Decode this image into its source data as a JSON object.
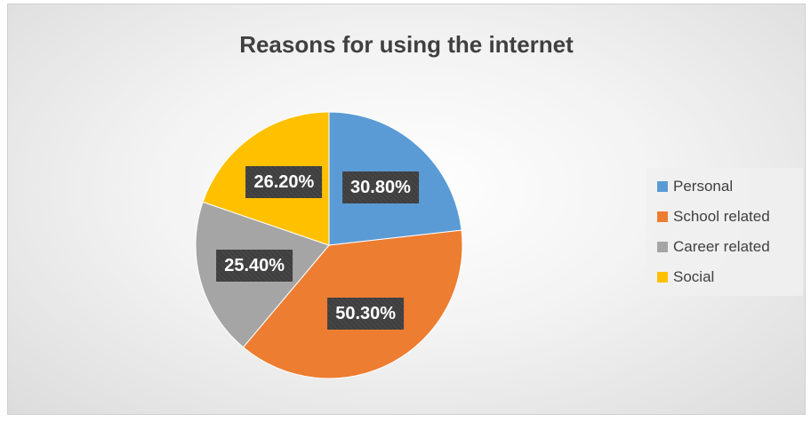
{
  "chart_data": {
    "type": "pie",
    "title": "Reasons for using the internet",
    "categories": [
      "Personal",
      "School related",
      "Career related",
      "Social"
    ],
    "values": [
      30.8,
      50.3,
      25.4,
      26.2
    ],
    "value_labels": [
      "30.80%",
      "50.30%",
      "25.40%",
      "26.20%"
    ],
    "colors": [
      "#5b9bd5",
      "#ed7d31",
      "#a5a5a5",
      "#ffc000"
    ],
    "start_angle_deg": 0,
    "direction": "clockwise",
    "legend_position": "right"
  }
}
